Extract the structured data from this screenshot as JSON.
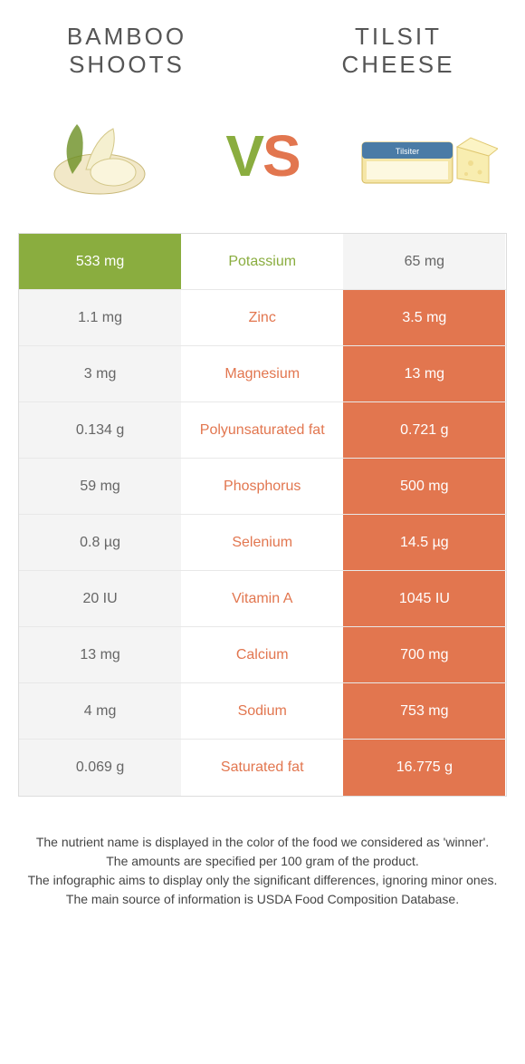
{
  "header": {
    "left_line1": "BAMBOO",
    "left_line2": "SHOOTS",
    "right_line1": "TILSIT",
    "right_line2": "CHEESE"
  },
  "vs": {
    "v": "V",
    "s": "S"
  },
  "colors": {
    "green": "#8aad3f",
    "orange": "#e2764f",
    "gray": "#f4f4f4"
  },
  "rows": [
    {
      "nutrient": "Potassium",
      "left": "533 mg",
      "right": "65 mg",
      "winner": "left"
    },
    {
      "nutrient": "Zinc",
      "left": "1.1 mg",
      "right": "3.5 mg",
      "winner": "right"
    },
    {
      "nutrient": "Magnesium",
      "left": "3 mg",
      "right": "13 mg",
      "winner": "right"
    },
    {
      "nutrient": "Polyunsaturated fat",
      "left": "0.134 g",
      "right": "0.721 g",
      "winner": "right"
    },
    {
      "nutrient": "Phosphorus",
      "left": "59 mg",
      "right": "500 mg",
      "winner": "right"
    },
    {
      "nutrient": "Selenium",
      "left": "0.8 µg",
      "right": "14.5 µg",
      "winner": "right"
    },
    {
      "nutrient": "Vitamin A",
      "left": "20 IU",
      "right": "1045 IU",
      "winner": "right"
    },
    {
      "nutrient": "Calcium",
      "left": "13 mg",
      "right": "700 mg",
      "winner": "right"
    },
    {
      "nutrient": "Sodium",
      "left": "4 mg",
      "right": "753 mg",
      "winner": "right"
    },
    {
      "nutrient": "Saturated fat",
      "left": "0.069 g",
      "right": "16.775 g",
      "winner": "right"
    }
  ],
  "footer": {
    "line1": "The nutrient name is displayed in the color of the food we considered as 'winner'.",
    "line2": "The amounts are specified per 100 gram of the product.",
    "line3": "The infographic aims to display only the significant differences, ignoring minor ones.",
    "line4": "The main source of information is USDA Food Composition Database."
  }
}
